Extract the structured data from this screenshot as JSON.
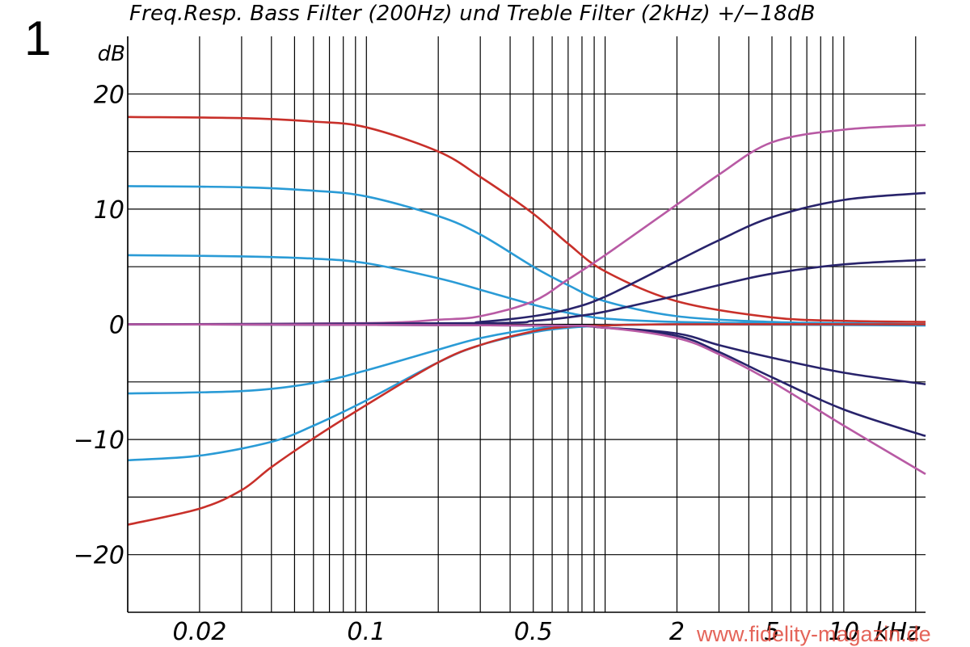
{
  "figure_number": "1",
  "watermark": "www.fidelity-magazin.de",
  "chart_data": {
    "type": "line",
    "title": "Freq.Resp. Bass Filter (200Hz) und Treble Filter (2kHz) +/−18dB",
    "ylabel": "dB",
    "xlabel": "kHz",
    "x_scale": "log",
    "xlim": [
      0.01,
      22
    ],
    "ylim": [
      -25,
      25
    ],
    "x_tick_labels": [
      {
        "value": 0.02,
        "label": "0.02"
      },
      {
        "value": 0.1,
        "label": "0.1"
      },
      {
        "value": 0.5,
        "label": "0.5"
      },
      {
        "value": 2,
        "label": "2"
      },
      {
        "value": 5,
        "label": "5"
      },
      {
        "value": 10,
        "label": "10"
      }
    ],
    "y_tick_labels": [
      {
        "value": 20,
        "label": "20"
      },
      {
        "value": 10,
        "label": "10"
      },
      {
        "value": 0,
        "label": "0"
      },
      {
        "value": -10,
        "label": "−10"
      },
      {
        "value": -20,
        "label": "−20"
      }
    ],
    "grid": true,
    "colors": {
      "bass_max": "#c8302a",
      "bass_mid": "#2a9bd6",
      "treble_max": "#b85aa4",
      "treble_mid": "#28236b",
      "grid": "#000000"
    },
    "series": [
      {
        "group": "bass",
        "color": "#c8302a",
        "points": [
          [
            0.01,
            18.0
          ],
          [
            0.03,
            17.9
          ],
          [
            0.06,
            17.6
          ],
          [
            0.1,
            17.1
          ],
          [
            0.2,
            15.0
          ],
          [
            0.3,
            12.8
          ],
          [
            0.5,
            9.6
          ],
          [
            0.7,
            7.0
          ],
          [
            1.0,
            4.6
          ],
          [
            2.0,
            2.0
          ],
          [
            5.0,
            0.6
          ],
          [
            10.0,
            0.3
          ],
          [
            22.0,
            0.2
          ]
        ]
      },
      {
        "group": "bass",
        "color": "#2a9bd6",
        "points": [
          [
            0.01,
            12.0
          ],
          [
            0.03,
            11.9
          ],
          [
            0.06,
            11.6
          ],
          [
            0.1,
            11.1
          ],
          [
            0.2,
            9.4
          ],
          [
            0.3,
            7.8
          ],
          [
            0.5,
            5.0
          ],
          [
            0.7,
            3.4
          ],
          [
            1.0,
            2.0
          ],
          [
            2.0,
            0.7
          ],
          [
            5.0,
            0.2
          ],
          [
            10.0,
            0.1
          ],
          [
            22.0,
            0.0
          ]
        ]
      },
      {
        "group": "bass",
        "color": "#2a9bd6",
        "points": [
          [
            0.01,
            6.0
          ],
          [
            0.03,
            5.9
          ],
          [
            0.06,
            5.7
          ],
          [
            0.1,
            5.3
          ],
          [
            0.2,
            4.0
          ],
          [
            0.3,
            3.0
          ],
          [
            0.5,
            1.7
          ],
          [
            0.7,
            1.0
          ],
          [
            1.0,
            0.5
          ],
          [
            2.0,
            0.2
          ],
          [
            5.0,
            0.1
          ],
          [
            22.0,
            0.0
          ]
        ]
      },
      {
        "group": "bass",
        "color": "#2a9bd6",
        "points": [
          [
            0.01,
            -6.0
          ],
          [
            0.03,
            -5.8
          ],
          [
            0.06,
            -5.1
          ],
          [
            0.1,
            -4.0
          ],
          [
            0.2,
            -2.2
          ],
          [
            0.3,
            -1.2
          ],
          [
            0.5,
            -0.4
          ],
          [
            0.7,
            -0.2
          ],
          [
            1.0,
            -0.1
          ],
          [
            2.0,
            0.0
          ],
          [
            22.0,
            0.0
          ]
        ]
      },
      {
        "group": "bass",
        "color": "#2a9bd6",
        "points": [
          [
            0.01,
            -11.8
          ],
          [
            0.02,
            -11.4
          ],
          [
            0.04,
            -10.2
          ],
          [
            0.06,
            -8.8
          ],
          [
            0.1,
            -6.6
          ],
          [
            0.2,
            -3.3
          ],
          [
            0.3,
            -1.8
          ],
          [
            0.5,
            -0.7
          ],
          [
            0.7,
            -0.3
          ],
          [
            1.0,
            -0.1
          ],
          [
            2.0,
            0.0
          ],
          [
            22.0,
            -0.1
          ]
        ]
      },
      {
        "group": "bass",
        "color": "#c8302a",
        "points": [
          [
            0.01,
            -17.4
          ],
          [
            0.02,
            -16.0
          ],
          [
            0.03,
            -14.4
          ],
          [
            0.04,
            -12.4
          ],
          [
            0.06,
            -9.9
          ],
          [
            0.1,
            -7.0
          ],
          [
            0.2,
            -3.3
          ],
          [
            0.3,
            -1.8
          ],
          [
            0.5,
            -0.6
          ],
          [
            0.7,
            -0.2
          ],
          [
            1.0,
            -0.1
          ],
          [
            2.0,
            0.0
          ],
          [
            22.0,
            0.0
          ]
        ]
      },
      {
        "group": "treble",
        "color": "#b85aa4",
        "points": [
          [
            0.01,
            0.0
          ],
          [
            0.1,
            0.1
          ],
          [
            0.2,
            0.4
          ],
          [
            0.3,
            0.7
          ],
          [
            0.5,
            2.0
          ],
          [
            0.7,
            3.9
          ],
          [
            1.0,
            6.0
          ],
          [
            2.0,
            10.4
          ],
          [
            3.0,
            13.0
          ],
          [
            5.0,
            15.8
          ],
          [
            10.0,
            16.9
          ],
          [
            22.0,
            17.3
          ]
        ]
      },
      {
        "group": "treble",
        "color": "#28236b",
        "points": [
          [
            0.01,
            0.0
          ],
          [
            0.2,
            0.0
          ],
          [
            0.3,
            0.2
          ],
          [
            0.5,
            0.7
          ],
          [
            0.7,
            1.3
          ],
          [
            1.0,
            2.4
          ],
          [
            2.0,
            5.5
          ],
          [
            3.0,
            7.3
          ],
          [
            5.0,
            9.3
          ],
          [
            10.0,
            10.8
          ],
          [
            22.0,
            11.4
          ]
        ]
      },
      {
        "group": "treble",
        "color": "#28236b",
        "points": [
          [
            0.01,
            0.0
          ],
          [
            0.3,
            0.1
          ],
          [
            0.5,
            0.3
          ],
          [
            0.7,
            0.6
          ],
          [
            1.0,
            1.1
          ],
          [
            2.0,
            2.5
          ],
          [
            3.0,
            3.4
          ],
          [
            5.0,
            4.4
          ],
          [
            10.0,
            5.2
          ],
          [
            22.0,
            5.6
          ]
        ]
      },
      {
        "group": "treble",
        "color": "#28236b",
        "points": [
          [
            0.01,
            0.0
          ],
          [
            0.5,
            -0.1
          ],
          [
            1.0,
            -0.3
          ],
          [
            2.0,
            -0.8
          ],
          [
            3.0,
            -1.8
          ],
          [
            5.0,
            -2.9
          ],
          [
            10.0,
            -4.2
          ],
          [
            22.0,
            -5.2
          ]
        ]
      },
      {
        "group": "treble",
        "color": "#28236b",
        "points": [
          [
            0.01,
            0.0
          ],
          [
            0.5,
            -0.1
          ],
          [
            1.0,
            -0.3
          ],
          [
            2.0,
            -1.0
          ],
          [
            3.0,
            -2.4
          ],
          [
            5.0,
            -4.6
          ],
          [
            10.0,
            -7.4
          ],
          [
            22.0,
            -9.7
          ]
        ]
      },
      {
        "group": "treble",
        "color": "#b85aa4",
        "points": [
          [
            0.01,
            0.0
          ],
          [
            0.5,
            -0.1
          ],
          [
            1.0,
            -0.3
          ],
          [
            2.0,
            -1.2
          ],
          [
            3.0,
            -2.6
          ],
          [
            5.0,
            -5.0
          ],
          [
            10.0,
            -8.8
          ],
          [
            22.0,
            -13.0
          ]
        ]
      }
    ]
  }
}
